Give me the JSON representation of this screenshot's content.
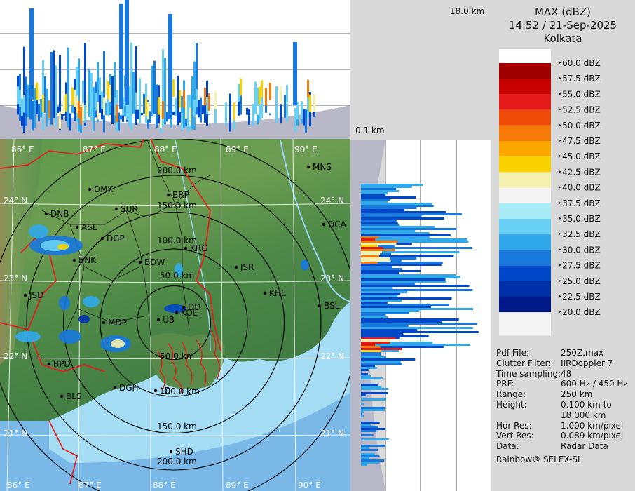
{
  "header": {
    "title": "MAX (dBZ)",
    "datetime": "14:52 / 21-Sep-2025",
    "station": "Kolkata"
  },
  "top_panel": {
    "height_label_top": "18.0 km",
    "height_label_bottom": "0.1 km"
  },
  "legend": {
    "entries": [
      "60.0 dBZ",
      "57.5 dBZ",
      "55.0 dBZ",
      "52.5 dBZ",
      "50.0 dBZ",
      "47.5 dBZ",
      "45.0 dBZ",
      "42.5 dBZ",
      "40.0 dBZ",
      "37.5 dBZ",
      "35.0 dBZ",
      "32.5 dBZ",
      "30.0 dBZ",
      "27.5 dBZ",
      "25.0 dBZ",
      "22.5 dBZ",
      "20.0 dBZ"
    ],
    "colors": [
      "#f4f4f4",
      "#a00000",
      "#c80000",
      "#e41a1a",
      "#f04a08",
      "#f57a08",
      "#faa800",
      "#fad200",
      "#f4f0b0",
      "#f4f4f4",
      "#a8ecf8",
      "#68d0f4",
      "#30a8ea",
      "#1878dc",
      "#0048c8",
      "#0030a8",
      "#001888"
    ]
  },
  "info": {
    "rows": [
      {
        "key": "Pdf File:",
        "value": "250Z.max"
      },
      {
        "key": "Clutter Filter:",
        "value": "IIRDoppler 7"
      },
      {
        "key": "Time sampling:",
        "value": "48"
      },
      {
        "key": "PRF:",
        "value": "600 Hz / 450 Hz"
      },
      {
        "key": "Range:",
        "value": "250 km"
      },
      {
        "key": "Height:",
        "value": "0.100 km to"
      },
      {
        "key": "",
        "value": "18.000 km"
      },
      {
        "key": "Hor Res:",
        "value": "1.000 km/pixel"
      },
      {
        "key": "Vert Res:",
        "value": "0.089 km/pixel"
      },
      {
        "key": "Data:",
        "value": "Radar Data"
      }
    ],
    "footer": "Rainbow® SELEX-SI"
  },
  "map": {
    "lon_labels": [
      "86° E",
      "87° E",
      "88° E",
      "89° E",
      "90° E"
    ],
    "lat_labels": [
      "24° N",
      "23° N",
      "22° N",
      "21° N"
    ],
    "range_labels": [
      "200.0 km",
      "150.0 km",
      "100.0 km",
      "50.0 km",
      "50.0 km",
      "100.0 km",
      "150.0 km",
      "200.0 km"
    ],
    "cities": [
      "MNS",
      "DMK",
      "BRP",
      "SUR",
      "DNB",
      "ASL",
      "DGP",
      "DCA",
      "KRG",
      "BDW",
      "BNK",
      "JSR",
      "KHL",
      "JSD",
      "BSL",
      "KOL",
      "DD",
      "MDP",
      "UB",
      "BPD",
      "DGH",
      "LD",
      "BLS",
      "SHD"
    ]
  }
}
